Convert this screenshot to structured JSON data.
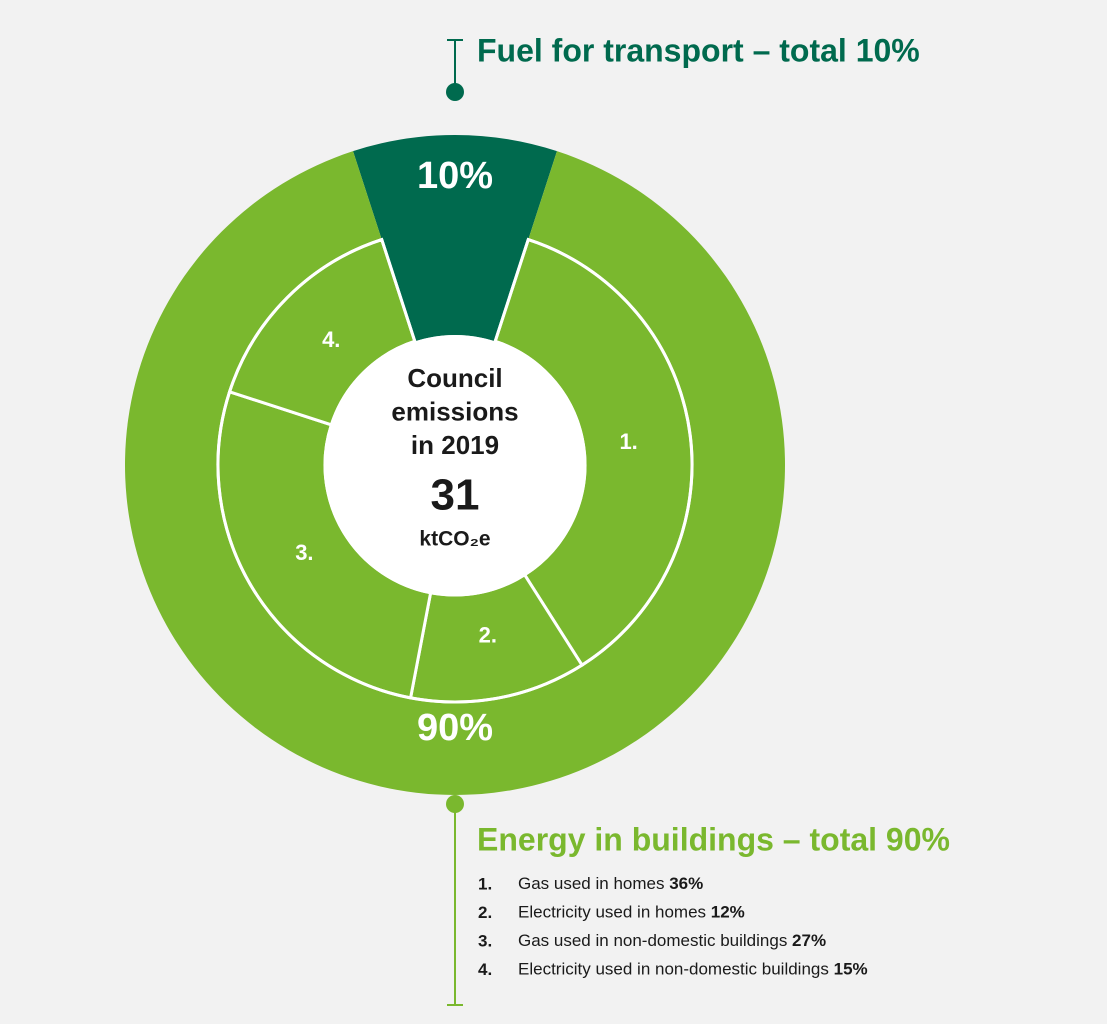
{
  "chart_data": {
    "type": "donut",
    "center": {
      "lines": [
        "Council",
        "emissions",
        "in 2019"
      ],
      "total": 31,
      "unit": "ktCO₂e"
    },
    "segments": [
      {
        "heading": "Fuel for transport – total 10%",
        "value": 10,
        "value_label": "10%",
        "color": "#006a4e"
      },
      {
        "heading": "Energy in buildings – total 90%",
        "value": 90,
        "value_label": "90%",
        "color": "#7ab82e",
        "breakdown": [
          {
            "marker": "1.",
            "name": "Gas used in homes",
            "value": 36,
            "value_label": "36%"
          },
          {
            "marker": "2.",
            "name": "Electricity used in homes",
            "value": 12,
            "value_label": "12%"
          },
          {
            "marker": "3.",
            "name": "Gas used in non-domestic buildings",
            "value": 27,
            "value_label": "27%"
          },
          {
            "marker": "4.",
            "name": "Electricity used in non-domestic buildings",
            "value": 15,
            "value_label": "15%"
          }
        ]
      }
    ]
  }
}
